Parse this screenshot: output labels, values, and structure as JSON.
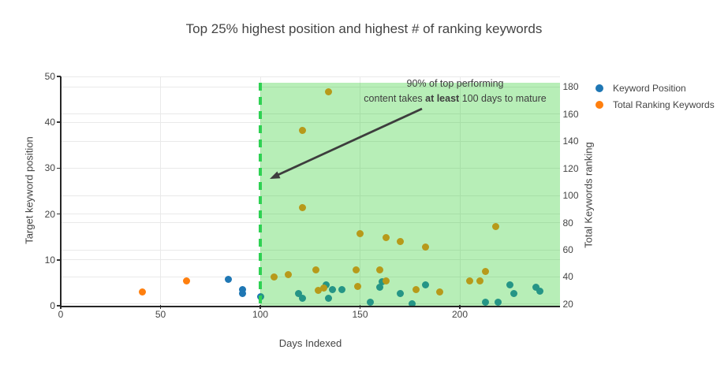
{
  "title": "Top 25% highest position and highest # of ranking keywords",
  "legend": {
    "items": [
      {
        "label": "Keyword Position",
        "color": "#1f77b4"
      },
      {
        "label": "Total Ranking Keywords",
        "color": "#ff7f0e"
      }
    ]
  },
  "annotation": {
    "line1": "90% of top performing",
    "line2_pre": "content takes ",
    "line2_bold": "at least",
    "line2_post": " 100 days to mature"
  },
  "chart_data": {
    "type": "scatter",
    "title": "Top 25% highest position and highest # of ranking keywords",
    "xlabel": "Days Indexed",
    "ylabel_left": "Target keyword position",
    "ylabel_right": "Total Keywords ranking",
    "x_range": [
      0,
      250
    ],
    "x_ticks": [
      0,
      50,
      100,
      150,
      200
    ],
    "y_left_range": [
      0,
      50
    ],
    "y_left_ticks": [
      0,
      10,
      20,
      30,
      40,
      50
    ],
    "y_right_range": [
      18.84,
      187.54
    ],
    "y_right_ticks": [
      20,
      40,
      60,
      80,
      100,
      120,
      140,
      160,
      180
    ],
    "grid": true,
    "legend_position": "top-right-outside",
    "threshold_x": 100,
    "threshold_line_color": "#2fd153",
    "region": {
      "x0": 100,
      "x1": 250,
      "y0": 0,
      "y1": 48.6,
      "fill": "rgba(50,205,50,0.35)"
    },
    "series": [
      {
        "name": "Keyword Position",
        "axis": "left",
        "color": "#1f77b4",
        "points": [
          [
            84,
            5.7
          ],
          [
            91,
            3.6
          ],
          [
            91,
            2.6
          ],
          [
            100,
            1.9
          ],
          [
            119,
            2.6
          ],
          [
            121,
            1.7
          ],
          [
            133,
            4.6
          ],
          [
            134,
            1.7
          ],
          [
            136,
            3.6
          ],
          [
            141,
            3.6
          ],
          [
            155,
            0.7
          ],
          [
            160,
            4.1
          ],
          [
            161,
            5.2
          ],
          [
            170,
            2.6
          ],
          [
            176,
            0.5
          ],
          [
            183,
            4.5
          ],
          [
            213,
            0.7
          ],
          [
            219,
            0.7
          ],
          [
            225,
            4.6
          ],
          [
            227,
            2.6
          ],
          [
            238,
            4.0
          ],
          [
            240,
            3.1
          ]
        ]
      },
      {
        "name": "Total Ranking Keywords",
        "axis": "right",
        "color": "#ff7f0e",
        "points": [
          [
            41,
            29
          ],
          [
            63,
            37
          ],
          [
            107,
            40
          ],
          [
            114,
            42
          ],
          [
            121,
            91
          ],
          [
            121,
            148
          ],
          [
            128,
            45
          ],
          [
            129,
            30
          ],
          [
            132,
            32
          ],
          [
            134,
            176
          ],
          [
            148,
            45
          ],
          [
            149,
            33
          ],
          [
            150,
            72
          ],
          [
            160,
            45
          ],
          [
            163,
            37
          ],
          [
            163,
            69
          ],
          [
            170,
            66
          ],
          [
            178,
            31
          ],
          [
            183,
            62
          ],
          [
            190,
            29
          ],
          [
            205,
            37
          ],
          [
            210,
            37
          ],
          [
            213,
            44
          ],
          [
            218,
            77
          ]
        ]
      }
    ]
  }
}
